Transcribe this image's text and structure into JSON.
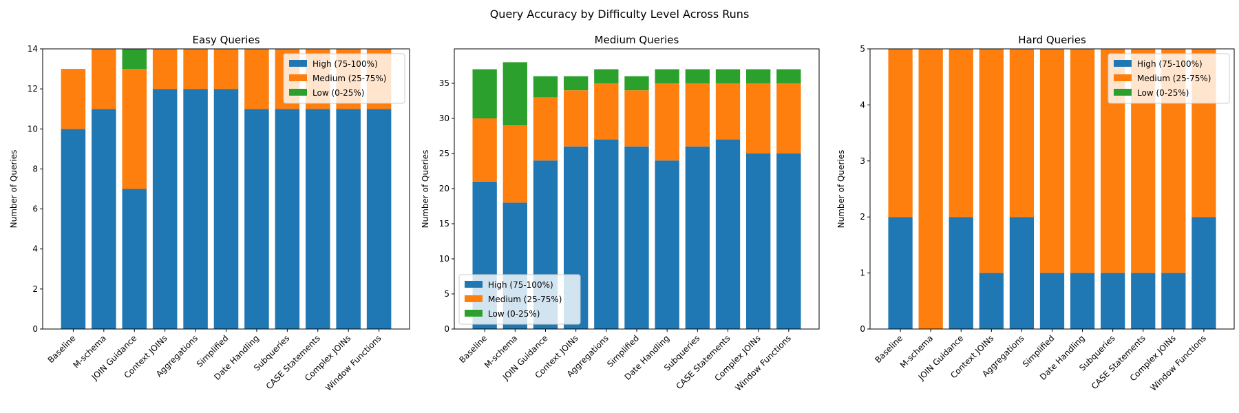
{
  "figure_title": "Query Accuracy by Difficulty Level Across Runs",
  "colors": {
    "high": "#1f77b4",
    "medium": "#ff7f0e",
    "low": "#2ca02c"
  },
  "chart_data": [
    {
      "type": "bar",
      "stacked": true,
      "title": "Easy Queries",
      "xlabel": "",
      "ylabel": "Number of Queries",
      "ylim": [
        0,
        14
      ],
      "yticks": [
        0,
        2,
        4,
        6,
        8,
        10,
        12,
        14
      ],
      "legend_position": "top-right",
      "categories": [
        "Baseline",
        "M-schema",
        "JOIN Guidance",
        "Context JOINs",
        "Aggregations",
        "Simplified",
        "Date Handling",
        "Subqueries",
        "CASE Statements",
        "Complex JOINs",
        "Window Functions"
      ],
      "series": [
        {
          "name": "High (75-100%)",
          "color": "#1f77b4",
          "values": [
            10,
            11,
            7,
            12,
            12,
            12,
            11,
            11,
            11,
            11,
            11
          ]
        },
        {
          "name": "Medium (25-75%)",
          "color": "#ff7f0e",
          "values": [
            3,
            3,
            6,
            2,
            2,
            2,
            3,
            3,
            3,
            3,
            3
          ]
        },
        {
          "name": "Low (0-25%)",
          "color": "#2ca02c",
          "values": [
            0,
            0,
            1,
            0,
            0,
            0,
            0,
            0,
            0,
            0,
            0
          ]
        }
      ]
    },
    {
      "type": "bar",
      "stacked": true,
      "title": "Medium Queries",
      "xlabel": "",
      "ylabel": "Number of Queries",
      "ylim": [
        0,
        39.9
      ],
      "yticks": [
        0,
        5,
        10,
        15,
        20,
        25,
        30,
        35
      ],
      "legend_position": "bottom-left",
      "categories": [
        "Baseline",
        "M-schema",
        "JOIN Guidance",
        "Context JOINs",
        "Aggregations",
        "Simplified",
        "Date Handling",
        "Subqueries",
        "CASE Statements",
        "Complex JOINs",
        "Window Functions"
      ],
      "series": [
        {
          "name": "High (75-100%)",
          "color": "#1f77b4",
          "values": [
            21,
            18,
            24,
            26,
            27,
            26,
            24,
            26,
            27,
            25,
            25
          ]
        },
        {
          "name": "Medium (25-75%)",
          "color": "#ff7f0e",
          "values": [
            9,
            11,
            9,
            8,
            8,
            8,
            11,
            9,
            8,
            10,
            10
          ]
        },
        {
          "name": "Low (0-25%)",
          "color": "#2ca02c",
          "values": [
            7,
            9,
            3,
            2,
            2,
            2,
            2,
            2,
            2,
            2,
            2
          ]
        }
      ]
    },
    {
      "type": "bar",
      "stacked": true,
      "title": "Hard Queries",
      "xlabel": "",
      "ylabel": "Number of Queries",
      "ylim": [
        0,
        5
      ],
      "yticks": [
        0,
        1,
        2,
        3,
        4,
        5
      ],
      "legend_position": "top-right",
      "categories": [
        "Baseline",
        "M-schema",
        "JOIN Guidance",
        "Context JOINs",
        "Aggregations",
        "Simplified",
        "Date Handling",
        "Subqueries",
        "CASE Statements",
        "Complex JOINs",
        "Window Functions"
      ],
      "series": [
        {
          "name": "High (75-100%)",
          "color": "#1f77b4",
          "values": [
            2,
            0,
            2,
            1,
            2,
            1,
            1,
            1,
            1,
            1,
            2
          ]
        },
        {
          "name": "Medium (25-75%)",
          "color": "#ff7f0e",
          "values": [
            3,
            5,
            3,
            4,
            3,
            4,
            4,
            4,
            4,
            4,
            3
          ]
        },
        {
          "name": "Low (0-25%)",
          "color": "#2ca02c",
          "values": [
            0,
            0,
            0,
            0,
            0,
            0,
            0,
            0,
            0,
            0,
            0
          ]
        }
      ]
    }
  ]
}
